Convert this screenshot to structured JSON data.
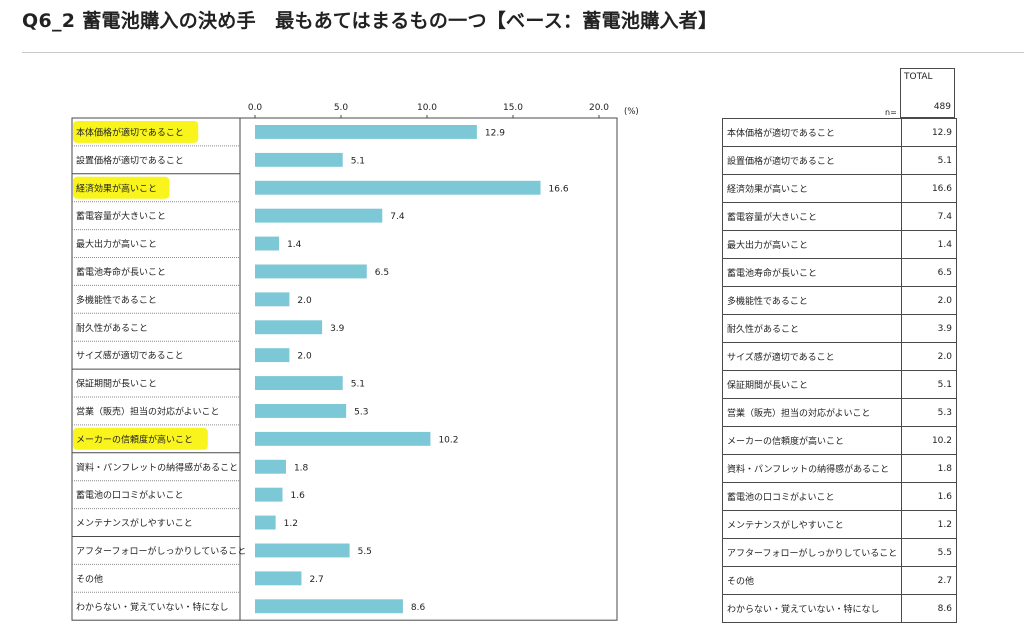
{
  "page": {
    "title": "Q6_2 蓄電池購入の決め手　最もあてはまるもの一つ【ベース：蓄電池購入者】"
  },
  "chart_data": {
    "type": "bar",
    "orientation": "horizontal",
    "unit_label": "(%)",
    "xlim": [
      0,
      20
    ],
    "ticks": [
      "0.0",
      "5.0",
      "10.0",
      "15.0",
      "20.0"
    ],
    "bar_color": "#7dc8d6",
    "highlight_color": "#f8f41c",
    "categories": [
      "本体価格が適切であること",
      "設置価格が適切であること",
      "経済効果が高いこと",
      "蓄電容量が大きいこと",
      "最大出力が高いこと",
      "蓄電池寿命が長いこと",
      "多機能性であること",
      "耐久性があること",
      "サイズ感が適切であること",
      "保証期間が長いこと",
      "営業（販売）担当の対応がよいこと",
      "メーカーの信頼度が高いこと",
      "資料・パンフレットの納得感があること",
      "蓄電池の口コミがよいこと",
      "メンテナンスがしやすいこと",
      "アフターフォローがしっかりしていること",
      "その他",
      "わからない・覚えていない・特になし"
    ],
    "values": [
      12.9,
      5.1,
      16.6,
      7.4,
      1.4,
      6.5,
      2.0,
      3.9,
      2.0,
      5.1,
      5.3,
      10.2,
      1.8,
      1.6,
      1.2,
      5.5,
      2.7,
      8.6
    ],
    "value_labels": [
      "12.9",
      "5.1",
      "16.6",
      "7.4",
      "1.4",
      "6.5",
      "2.0",
      "3.9",
      "2.0",
      "5.1",
      "5.3",
      "10.2",
      "1.8",
      "1.6",
      "1.2",
      "5.5",
      "2.7",
      "8.6"
    ],
    "highlighted": [
      0,
      2,
      11
    ],
    "group_breaks": [
      2,
      9,
      12,
      15
    ]
  },
  "table": {
    "total_label": "TOTAL",
    "n_label": "n=",
    "n_value": "489"
  }
}
